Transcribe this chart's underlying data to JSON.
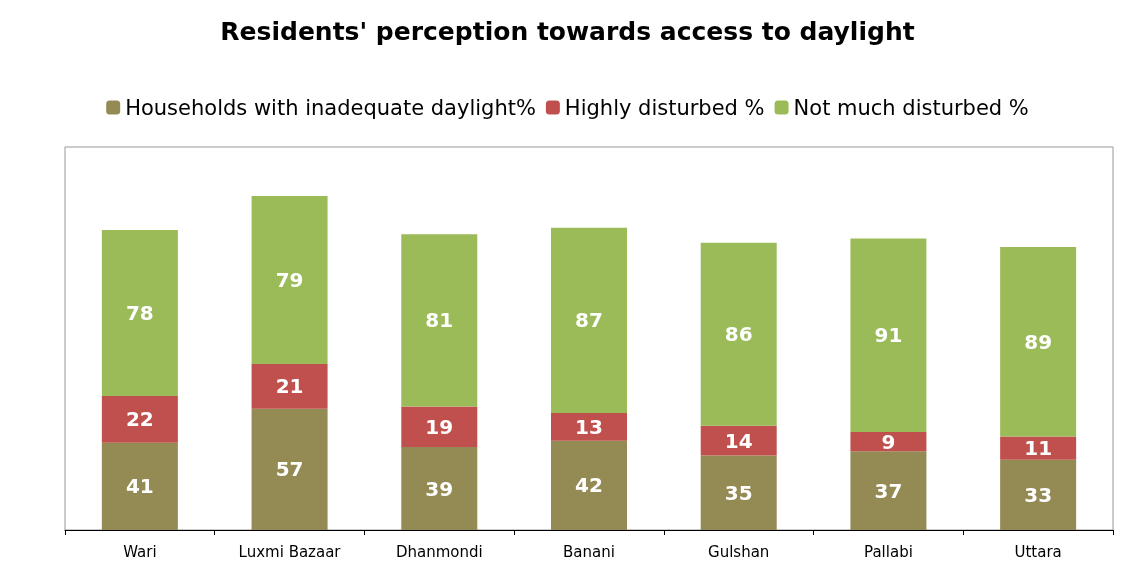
{
  "chart_data": {
    "type": "bar",
    "title": "Residents' perception towards access to daylight",
    "categories": [
      "Wari",
      "Luxmi Bazaar",
      "Dhanmondi",
      "Banani",
      "Gulshan",
      "Pallabi",
      "Uttara"
    ],
    "series": [
      {
        "name": "Households with inadequate daylight%",
        "color": "#948a54",
        "values": [
          41,
          57,
          39,
          42,
          35,
          37,
          33
        ]
      },
      {
        "name": "Highly disturbed %",
        "color": "#c0504d",
        "values": [
          22,
          21,
          19,
          13,
          14,
          9,
          11
        ]
      },
      {
        "name": "Not much disturbed %",
        "color": "#9bbb59",
        "values": [
          78,
          79,
          81,
          87,
          86,
          91,
          89
        ]
      }
    ],
    "stacked": true,
    "data_labels": true,
    "legend": "top"
  }
}
